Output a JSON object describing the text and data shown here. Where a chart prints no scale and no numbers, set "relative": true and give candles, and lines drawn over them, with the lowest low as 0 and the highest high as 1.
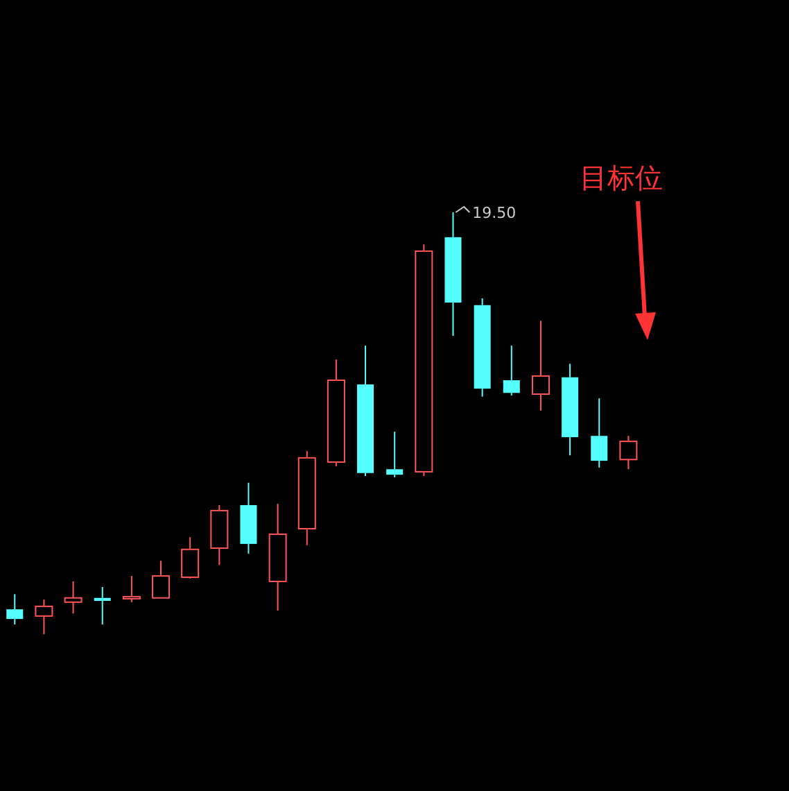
{
  "chart_data": {
    "type": "candlestick",
    "relative": true,
    "categories": [
      null,
      null,
      null,
      null,
      null,
      null,
      null,
      null,
      null,
      null,
      null,
      null,
      null,
      null,
      null,
      null,
      null,
      null,
      null,
      null,
      null,
      null,
      null,
      null,
      null,
      null,
      null
    ],
    "ohlc": [
      [
        0.059,
        0.095,
        0.023,
        0.036
      ],
      [
        0.043,
        0.082,
        0,
        0.066
      ],
      [
        0.076,
        0.125,
        0.049,
        0.086
      ],
      [
        0.086,
        0.112,
        0.023,
        0.079
      ],
      [
        0.086,
        0.138,
        0.076,
        0.089
      ],
      [
        0.086,
        0.174,
        0.086,
        0.138
      ],
      [
        0.135,
        0.23,
        0.132,
        0.201
      ],
      [
        0.204,
        0.306,
        0.164,
        0.293
      ],
      [
        0.306,
        0.359,
        0.191,
        0.214
      ],
      [
        0.125,
        0.309,
        0.056,
        0.237
      ],
      [
        0.25,
        0.434,
        0.211,
        0.418
      ],
      [
        0.408,
        0.651,
        0.398,
        0.602
      ],
      [
        0.592,
        0.684,
        0.375,
        0.382
      ],
      [
        0.391,
        0.48,
        0.372,
        0.378
      ],
      [
        0.385,
        0.924,
        0.375,
        0.908
      ],
      [
        0.941,
        1,
        0.707,
        0.786
      ],
      [
        0.78,
        0.796,
        0.563,
        0.582
      ],
      [
        0.602,
        0.684,
        0.566,
        0.572
      ],
      [
        0.569,
        0.743,
        0.53,
        0.612
      ],
      [
        0.609,
        0.641,
        0.424,
        0.467
      ],
      [
        0.47,
        0.559,
        0.395,
        0.411
      ],
      [
        0.414,
        0.47,
        0.391,
        0.457
      ],
      null,
      null,
      null,
      null,
      null
    ],
    "colors": [
      "#55ffff",
      "#ff5555",
      "#ff5555",
      "#55ffff",
      "#ff5555",
      "#ff5555",
      "#ff5555",
      "#ff5555",
      "#55ffff",
      "#ff5555",
      "#ff5555",
      "#ff5555",
      "#55ffff",
      "#55ffff",
      "#ff5555",
      "#55ffff",
      "#55ffff",
      "#55ffff",
      "#ff5555",
      "#55ffff",
      "#55ffff",
      "#ff5555",
      null,
      null,
      null,
      null,
      null
    ],
    "annotations": [
      "19.50",
      "目标位"
    ]
  }
}
